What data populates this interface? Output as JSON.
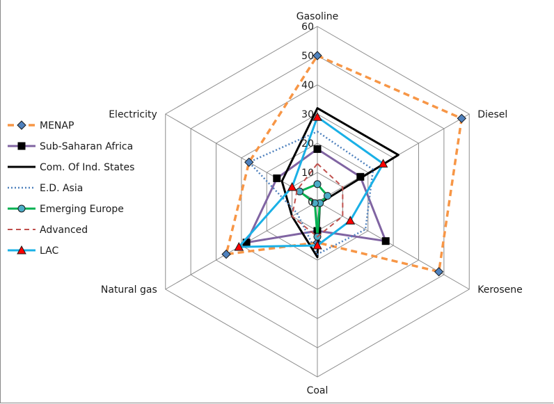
{
  "chart_data": {
    "type": "radar",
    "categories": [
      "Gasoline",
      "Diesel",
      "Kerosene",
      "Coal",
      "Natural gas",
      "Electricity"
    ],
    "rmin": 0,
    "rmax": 60,
    "ticks": [
      0,
      10,
      20,
      30,
      40,
      50,
      60
    ],
    "grid": true,
    "legend_position": "left",
    "series": [
      {
        "name": "MENAP",
        "values": [
          50,
          57,
          48,
          14,
          36,
          27
        ],
        "color": "#f79646",
        "dash": "9,6",
        "width": 3.5,
        "marker": "diamond",
        "marker_fill": "#4f81bd",
        "marker_stroke": "#1a1a1a"
      },
      {
        "name": "Sub-Saharan Africa",
        "values": [
          18,
          17,
          27,
          10,
          28,
          16
        ],
        "color": "#8064a2",
        "dash": "",
        "width": 3,
        "marker": "square",
        "marker_fill": "#000000",
        "marker_stroke": "#000000"
      },
      {
        "name": "Com. Of Ind. States",
        "values": [
          32,
          32,
          1,
          19,
          10,
          14
        ],
        "color": "#000000",
        "dash": "",
        "width": 3,
        "marker": "none",
        "marker_fill": "#000000",
        "marker_stroke": "#000000"
      },
      {
        "name": "E.D. Asia",
        "values": [
          24,
          22,
          19,
          18,
          8,
          27
        ],
        "color": "#4f81bd",
        "dash": "2,3",
        "width": 2.5,
        "marker": "none",
        "marker_fill": "#4f81bd",
        "marker_stroke": "#4f81bd"
      },
      {
        "name": "Emerging Europe",
        "values": [
          6,
          4,
          1,
          12,
          1,
          7
        ],
        "color": "#00b050",
        "dash": "",
        "width": 3,
        "marker": "circle",
        "marker_fill": "#4bacc6",
        "marker_stroke": "#1a1a1a"
      },
      {
        "name": "Advanced",
        "values": [
          13,
          10,
          10,
          12,
          10,
          8
        ],
        "color": "#c0504d",
        "dash": "7,5",
        "width": 2,
        "marker": "none",
        "marker_fill": "#c0504d",
        "marker_stroke": "#c0504d"
      },
      {
        "name": "LAC",
        "values": [
          29,
          26,
          13,
          15,
          31,
          10
        ],
        "color": "#1ab0e6",
        "dash": "",
        "width": 3,
        "marker": "triangle",
        "marker_fill": "#ff0000",
        "marker_stroke": "#1a1a1a"
      }
    ]
  }
}
